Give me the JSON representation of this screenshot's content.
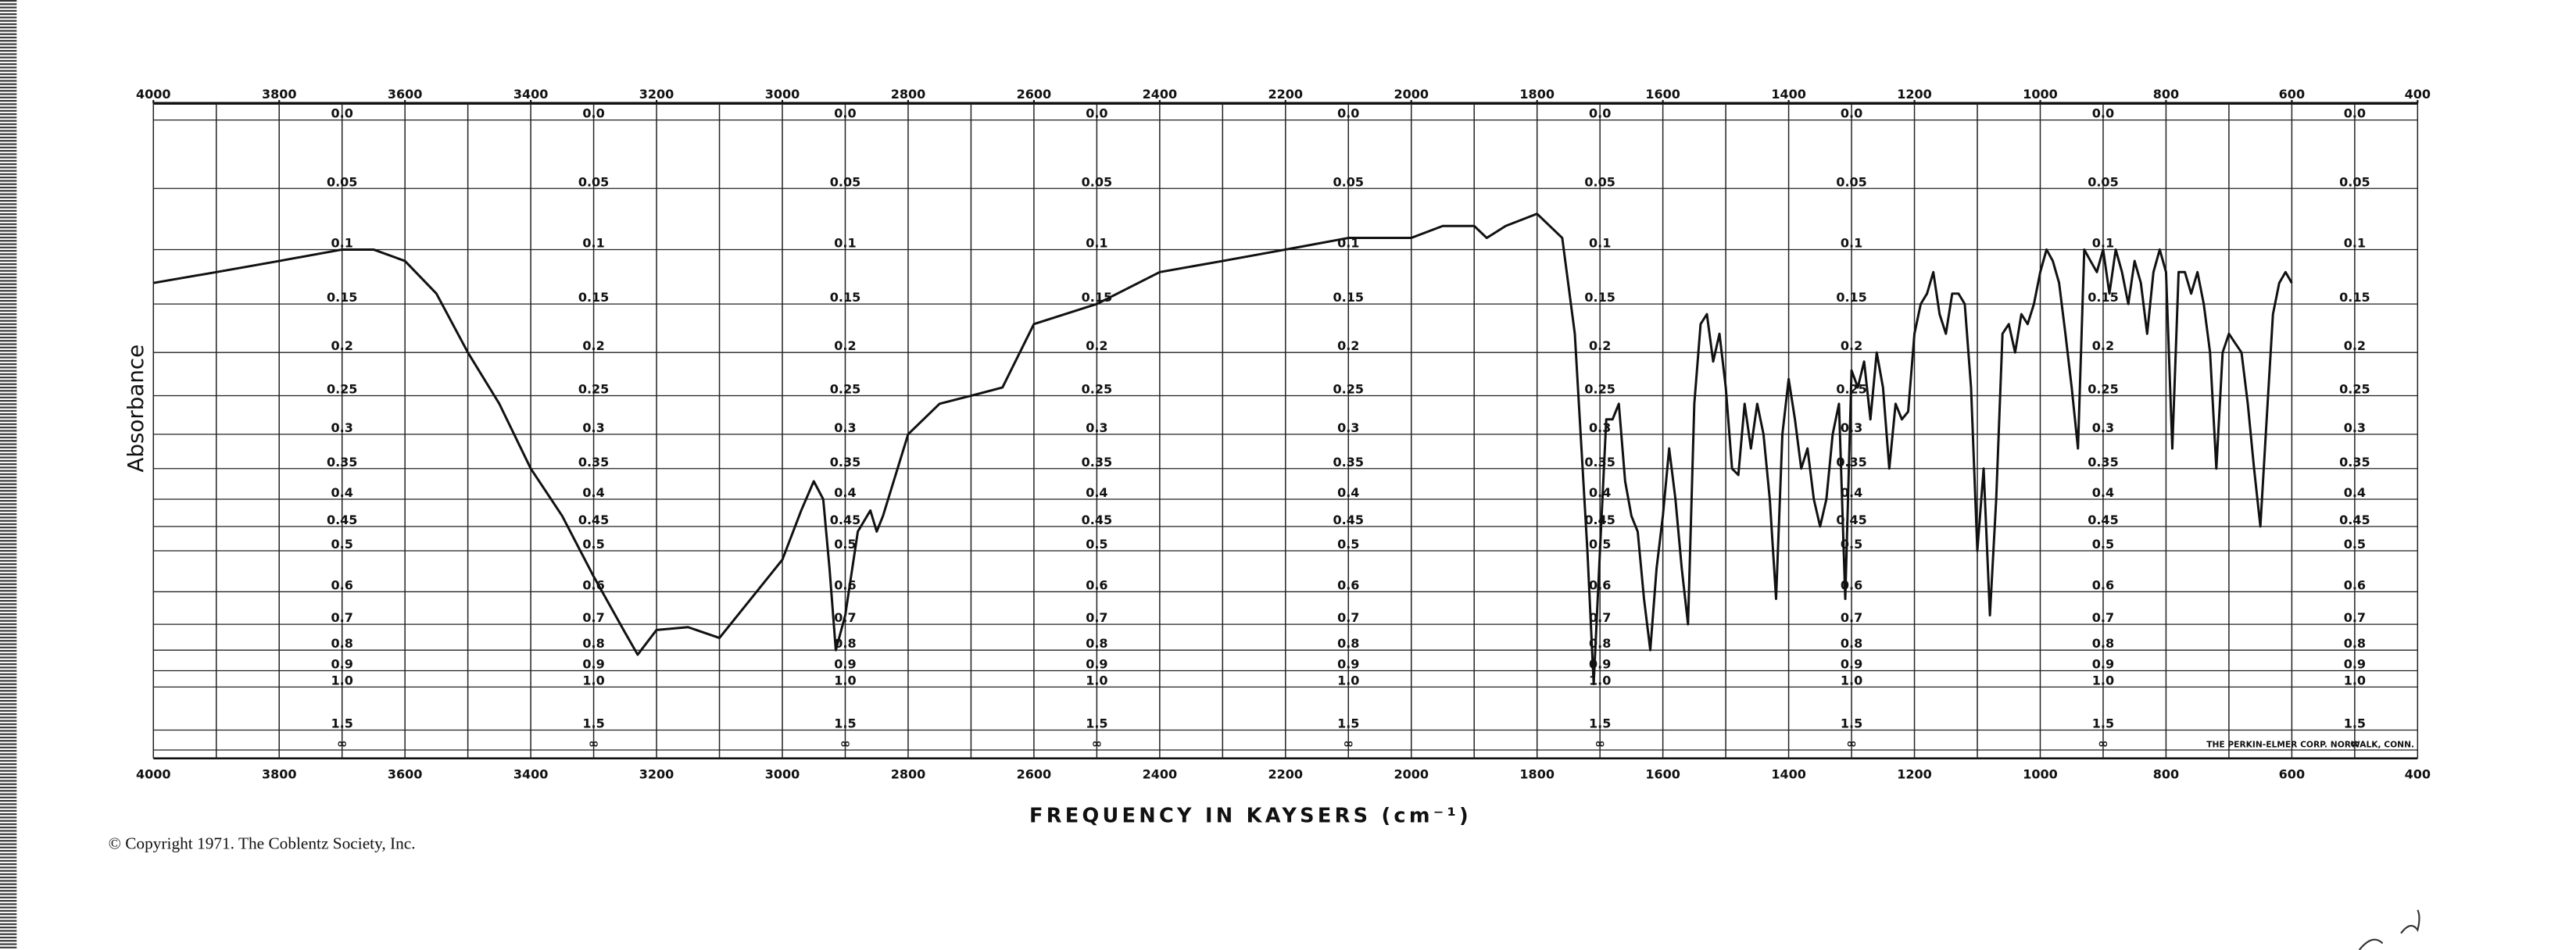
{
  "chart_data": {
    "type": "line",
    "x_label": "FREQUENCY IN KAYSERS (cm⁻¹)",
    "y_label": "Absorbance",
    "footnote": "© Copyright 1971. The Coblentz Society, Inc.",
    "imprint": "THE PERKIN-ELMER CORP. NORWALK, CONN.",
    "yscale": "absorbance",
    "color": "#111111",
    "xlim": [
      4000,
      400
    ],
    "xticks": [
      4000,
      3800,
      3600,
      3400,
      3200,
      3000,
      2800,
      2600,
      2400,
      2200,
      2000,
      1800,
      1600,
      1400,
      1200,
      1000,
      800,
      600,
      400
    ],
    "xgrid": [
      4000,
      3900,
      3800,
      3700,
      3600,
      3500,
      3400,
      3300,
      3200,
      3100,
      3000,
      2900,
      2800,
      2700,
      2600,
      2500,
      2400,
      2300,
      2200,
      2100,
      2000,
      1900,
      1800,
      1700,
      1600,
      1500,
      1400,
      1300,
      1200,
      1100,
      1000,
      900,
      800,
      700,
      600,
      500,
      400
    ],
    "ylim": [
      0,
      "Infinity"
    ],
    "yticks": [
      {
        "value": 0,
        "label": "0.0"
      },
      0.05,
      0.1,
      0.15,
      0.2,
      0.25,
      0.3,
      0.35,
      0.4,
      0.45,
      0.5,
      0.6,
      0.7,
      0.8,
      0.9,
      {
        "value": 1,
        "label": "1.0"
      },
      1.5,
      {
        "value": "Infinity",
        "label": "∞"
      }
    ],
    "ytick_label_x": [
      3700,
      3300,
      2900,
      2500,
      2100,
      1700,
      1300,
      900,
      500
    ],
    "grid": true,
    "x": [
      4000,
      3900,
      3800,
      3700,
      3650,
      3600,
      3550,
      3500,
      3450,
      3400,
      3350,
      3300,
      3250,
      3230,
      3200,
      3150,
      3100,
      3050,
      3000,
      2970,
      2950,
      2935,
      2925,
      2915,
      2900,
      2880,
      2860,
      2850,
      2840,
      2800,
      2750,
      2700,
      2650,
      2600,
      2500,
      2400,
      2300,
      2200,
      2100,
      2000,
      1950,
      1900,
      1880,
      1850,
      1800,
      1760,
      1740,
      1720,
      1710,
      1700,
      1690,
      1680,
      1670,
      1660,
      1650,
      1640,
      1630,
      1620,
      1610,
      1600,
      1590,
      1580,
      1570,
      1560,
      1550,
      1540,
      1530,
      1520,
      1510,
      1500,
      1490,
      1480,
      1470,
      1460,
      1450,
      1440,
      1430,
      1420,
      1410,
      1400,
      1390,
      1380,
      1370,
      1360,
      1350,
      1340,
      1330,
      1320,
      1310,
      1300,
      1290,
      1280,
      1270,
      1260,
      1250,
      1240,
      1230,
      1220,
      1210,
      1200,
      1190,
      1180,
      1170,
      1160,
      1150,
      1140,
      1130,
      1120,
      1110,
      1100,
      1090,
      1080,
      1070,
      1060,
      1050,
      1040,
      1030,
      1020,
      1010,
      1000,
      990,
      980,
      970,
      960,
      950,
      940,
      930,
      920,
      910,
      900,
      890,
      880,
      870,
      860,
      850,
      840,
      830,
      820,
      810,
      800,
      790,
      780,
      770,
      760,
      750,
      740,
      730,
      720,
      710,
      700,
      690,
      680,
      670,
      660,
      650,
      640,
      630,
      620,
      610,
      600
    ],
    "values": [
      0.13,
      0.12,
      0.11,
      0.1,
      0.1,
      0.11,
      0.14,
      0.2,
      0.26,
      0.35,
      0.43,
      0.56,
      0.73,
      0.82,
      0.72,
      0.71,
      0.75,
      0.62,
      0.52,
      0.42,
      0.37,
      0.4,
      0.54,
      0.8,
      0.67,
      0.46,
      0.42,
      0.46,
      0.43,
      0.3,
      0.26,
      0.25,
      0.24,
      0.17,
      0.15,
      0.12,
      0.11,
      0.1,
      0.09,
      0.09,
      0.08,
      0.08,
      0.09,
      0.08,
      0.07,
      0.09,
      0.18,
      0.5,
      0.98,
      0.5,
      0.28,
      0.28,
      0.26,
      0.37,
      0.43,
      0.46,
      0.62,
      0.8,
      0.54,
      0.43,
      0.32,
      0.4,
      0.54,
      0.7,
      0.26,
      0.17,
      0.16,
      0.21,
      0.18,
      0.24,
      0.35,
      0.36,
      0.26,
      0.32,
      0.26,
      0.3,
      0.4,
      0.62,
      0.3,
      0.23,
      0.28,
      0.35,
      0.32,
      0.4,
      0.45,
      0.4,
      0.3,
      0.26,
      0.62,
      0.22,
      0.24,
      0.21,
      0.28,
      0.2,
      0.24,
      0.35,
      0.26,
      0.28,
      0.27,
      0.18,
      0.15,
      0.14,
      0.12,
      0.16,
      0.18,
      0.14,
      0.14,
      0.15,
      0.24,
      0.5,
      0.35,
      0.67,
      0.4,
      0.18,
      0.17,
      0.2,
      0.16,
      0.17,
      0.15,
      0.12,
      0.1,
      0.11,
      0.13,
      0.18,
      0.24,
      0.32,
      0.1,
      0.11,
      0.12,
      0.1,
      0.14,
      0.1,
      0.12,
      0.15,
      0.11,
      0.13,
      0.18,
      0.12,
      0.1,
      0.12,
      0.32,
      0.12,
      0.12,
      0.14,
      0.12,
      0.15,
      0.2,
      0.35,
      0.2,
      0.18,
      0.19,
      0.2,
      0.26,
      0.35,
      0.45,
      0.28,
      0.16,
      0.13,
      0.12,
      0.13
    ]
  }
}
